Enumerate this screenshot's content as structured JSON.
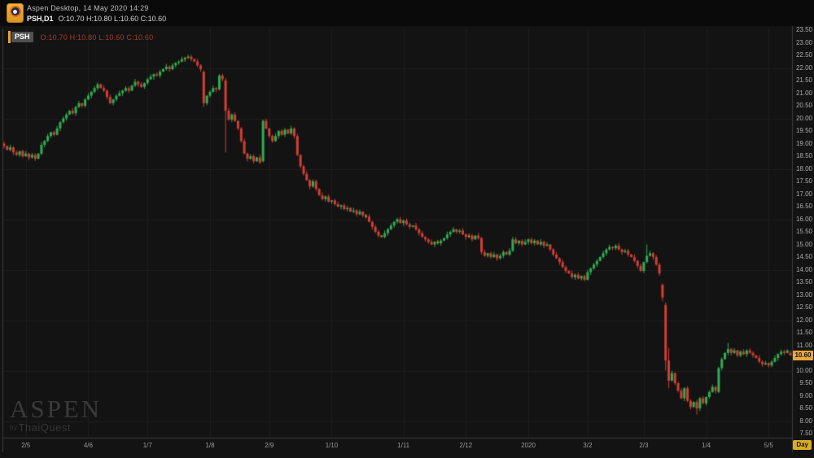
{
  "header": {
    "app_title": "Aspen Desktop, 14 May 2020 14:29",
    "symbol_interval": "PSH,D1",
    "ohlc": "O:10.70 H:10.80 L:10.60 C:10.60"
  },
  "chart": {
    "overlay": {
      "symbol": "PSH",
      "ohlc": "O:10.70 H:10.80 L:10.60 C:10.60"
    },
    "last_price": "10.60",
    "interval_label": "Day",
    "watermark": {
      "title": "ASPEN",
      "by": "by",
      "subtitle": "ThaiQuest"
    }
  },
  "chart_data": {
    "type": "candlestick",
    "symbol": "PSH",
    "interval": "D1",
    "title": "PSH daily candlestick chart, May 2019 - May 2020",
    "y_axis": {
      "min": 7.5,
      "max": 23.5,
      "step": 0.5
    },
    "grid_values": [
      8,
      10,
      12,
      14,
      16,
      18,
      20,
      22
    ],
    "x_ticks": [
      {
        "label": "2/5",
        "i": 7
      },
      {
        "label": "4/6",
        "i": 27
      },
      {
        "label": "1/7",
        "i": 46
      },
      {
        "label": "1/8",
        "i": 66
      },
      {
        "label": "2/9",
        "i": 85
      },
      {
        "label": "1/10",
        "i": 105
      },
      {
        "label": "1/11",
        "i": 128
      },
      {
        "label": "2/12",
        "i": 148
      },
      {
        "label": "2020",
        "i": 168
      },
      {
        "label": "3/2",
        "i": 187
      },
      {
        "label": "2/3",
        "i": 205
      },
      {
        "label": "1/4",
        "i": 225
      },
      {
        "label": "5/5",
        "i": 245
      }
    ],
    "first_open": 19.0,
    "closes": [
      18.9,
      18.75,
      18.85,
      18.65,
      18.55,
      18.7,
      18.5,
      18.6,
      18.45,
      18.55,
      18.4,
      18.6,
      18.95,
      19.1,
      19.3,
      19.45,
      19.35,
      19.6,
      19.85,
      20.0,
      20.15,
      20.3,
      20.2,
      20.45,
      20.6,
      20.5,
      20.75,
      20.9,
      21.05,
      21.2,
      21.35,
      21.2,
      21.1,
      20.85,
      20.6,
      20.75,
      20.9,
      21.0,
      21.1,
      21.2,
      21.1,
      21.3,
      21.45,
      21.35,
      21.25,
      21.4,
      21.55,
      21.65,
      21.75,
      21.7,
      21.85,
      21.95,
      22.05,
      21.95,
      22.1,
      22.2,
      22.25,
      22.35,
      22.4,
      22.45,
      22.35,
      22.25,
      22.1,
      21.95,
      20.6,
      20.9,
      21.05,
      21.2,
      21.15,
      21.7,
      21.55,
      20.3,
      19.95,
      20.15,
      19.9,
      19.6,
      19.1,
      18.6,
      18.4,
      18.5,
      18.3,
      18.45,
      18.25,
      19.9,
      19.6,
      19.3,
      19.1,
      19.3,
      19.5,
      19.35,
      19.55,
      19.4,
      19.6,
      19.3,
      18.55,
      18.1,
      17.8,
      17.55,
      17.3,
      17.5,
      17.2,
      16.95,
      16.8,
      16.9,
      16.7,
      16.75,
      16.6,
      16.5,
      16.55,
      16.4,
      16.45,
      16.3,
      16.35,
      16.2,
      16.3,
      16.15,
      16.1,
      15.9,
      15.7,
      15.5,
      15.35,
      15.3,
      15.45,
      15.6,
      15.75,
      15.9,
      16.0,
      15.85,
      15.95,
      15.8,
      15.7,
      15.75,
      15.6,
      15.45,
      15.3,
      15.2,
      15.1,
      15.0,
      15.1,
      15.05,
      15.15,
      15.25,
      15.4,
      15.5,
      15.6,
      15.5,
      15.55,
      15.4,
      15.3,
      15.35,
      15.2,
      15.35,
      15.25,
      14.7,
      14.55,
      14.65,
      14.5,
      14.6,
      14.45,
      14.55,
      14.7,
      14.6,
      14.75,
      15.2,
      15.05,
      15.15,
      15.0,
      15.1,
      15.2,
      15.05,
      15.15,
      15.0,
      15.1,
      14.95,
      15.0,
      14.8,
      14.6,
      14.45,
      14.3,
      14.1,
      13.95,
      13.85,
      13.7,
      13.8,
      13.65,
      13.75,
      13.6,
      13.9,
      14.05,
      14.2,
      14.35,
      14.5,
      14.65,
      14.8,
      14.9,
      14.85,
      14.95,
      14.8,
      14.7,
      14.75,
      14.6,
      14.5,
      14.35,
      14.15,
      13.95,
      14.3,
      14.55,
      14.65,
      14.5,
      14.2,
      13.85,
      12.9,
      10.4,
      9.6,
      9.9,
      9.5,
      9.2,
      8.9,
      9.3,
      8.8,
      8.55,
      8.75,
      8.5,
      8.9,
      8.7,
      8.95,
      9.15,
      9.35,
      9.2,
      10.1,
      10.45,
      10.7,
      10.85,
      10.7,
      10.8,
      10.6,
      10.75,
      10.65,
      10.8,
      10.7,
      10.6,
      10.5,
      10.35,
      10.25,
      10.3,
      10.2,
      10.35,
      10.5,
      10.65,
      10.75,
      10.7,
      10.8,
      10.6
    ],
    "overrides": {
      "64": [
        21.85,
        21.9,
        20.45,
        20.6
      ],
      "69": [
        21.15,
        21.75,
        21.1,
        21.7
      ],
      "71": [
        21.5,
        21.6,
        18.65,
        20.3
      ],
      "83": [
        18.3,
        19.95,
        18.25,
        19.9
      ],
      "163": [
        14.75,
        15.3,
        14.7,
        15.2
      ],
      "206": [
        14.3,
        15.0,
        14.25,
        14.55
      ],
      "211": [
        13.4,
        13.45,
        12.75,
        12.9
      ],
      "212": [
        12.6,
        12.7,
        10.0,
        10.4
      ],
      "213": [
        10.4,
        10.9,
        9.3,
        9.6
      ],
      "222": [
        8.75,
        8.85,
        8.26,
        8.5
      ],
      "229": [
        9.15,
        10.15,
        9.1,
        10.1
      ],
      "232": [
        10.7,
        11.1,
        10.6,
        10.85
      ],
      "252": [
        10.7,
        10.8,
        10.6,
        10.6
      ]
    },
    "wick_pattern": [
      0.07,
      0.03,
      0.11,
      0.05,
      0.09,
      0.02,
      0.06,
      0.1,
      0.04,
      0.08
    ],
    "doji_threshold": 0.05,
    "last_close_label": "10.60",
    "colors": {
      "up": "#2fae52",
      "down": "#d23f35",
      "doji": "#b8962e",
      "grid": "#1e1e1e",
      "border": "#3c3c3c",
      "background": "#131313",
      "axis_text": "#ababab",
      "last_price_bg": "#e7a83b"
    }
  }
}
